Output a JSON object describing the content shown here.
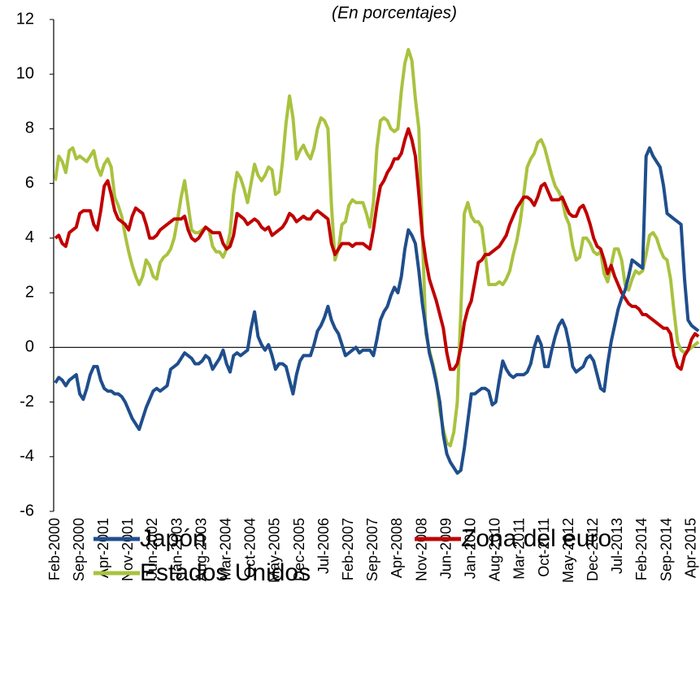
{
  "chart_data": {
    "type": "line",
    "subtitle": "(En porcentajes)",
    "categories": [
      "Feb-2000",
      null,
      null,
      null,
      null,
      null,
      null,
      "Sep-2000",
      null,
      null,
      null,
      null,
      null,
      null,
      "Apr-2001",
      null,
      null,
      null,
      null,
      null,
      null,
      "Nov-2001",
      null,
      null,
      null,
      null,
      null,
      null,
      "Jun-2002",
      null,
      null,
      null,
      null,
      null,
      null,
      "Jan-2003",
      null,
      null,
      null,
      null,
      null,
      null,
      "Aug-2003",
      null,
      null,
      null,
      null,
      null,
      null,
      "Mar-2004",
      null,
      null,
      null,
      null,
      null,
      null,
      "Oct-2004",
      null,
      null,
      null,
      null,
      null,
      null,
      "May-2005",
      null,
      null,
      null,
      null,
      null,
      null,
      "Dec-2005",
      null,
      null,
      null,
      null,
      null,
      null,
      "Jul-2006",
      null,
      null,
      null,
      null,
      null,
      null,
      "Feb-2007",
      null,
      null,
      null,
      null,
      null,
      null,
      "Sep-2007",
      null,
      null,
      null,
      null,
      null,
      null,
      "Apr-2008",
      null,
      null,
      null,
      null,
      null,
      null,
      "Nov-2008",
      null,
      null,
      null,
      null,
      null,
      null,
      "Jun-2009",
      null,
      null,
      null,
      null,
      null,
      null,
      "Jan-2010",
      null,
      null,
      null,
      null,
      null,
      null,
      "Aug-2010",
      null,
      null,
      null,
      null,
      null,
      null,
      "Mar-2011",
      null,
      null,
      null,
      null,
      null,
      null,
      "Oct-2011",
      null,
      null,
      null,
      null,
      null,
      null,
      "May-2012",
      null,
      null,
      null,
      null,
      null,
      null,
      "Dec-2012",
      null,
      null,
      null,
      null,
      null,
      null,
      "Jul-2013",
      null,
      null,
      null,
      null,
      null,
      null,
      "Feb-2014",
      null,
      null,
      null,
      null,
      null,
      null,
      "Sep-2014",
      null,
      null,
      null,
      null,
      null,
      null,
      "Apr-2015",
      null,
      null
    ],
    "series": [
      {
        "name": "Japón",
        "color": "#1f4e8c",
        "values": [
          -1.3,
          -1.1,
          -1.2,
          -1.4,
          -1.2,
          -1.1,
          -1.0,
          -1.7,
          -1.9,
          -1.5,
          -1.0,
          -0.7,
          -0.7,
          -1.2,
          -1.5,
          -1.6,
          -1.6,
          -1.7,
          -1.7,
          -1.8,
          -2.0,
          -2.3,
          -2.6,
          -2.8,
          -3.0,
          -2.6,
          -2.2,
          -1.9,
          -1.6,
          -1.5,
          -1.6,
          -1.5,
          -1.4,
          -0.8,
          -0.7,
          -0.6,
          -0.4,
          -0.2,
          -0.3,
          -0.4,
          -0.6,
          -0.6,
          -0.5,
          -0.3,
          -0.4,
          -0.8,
          -0.6,
          -0.4,
          -0.1,
          -0.6,
          -0.9,
          -0.3,
          -0.2,
          -0.3,
          -0.2,
          -0.1,
          0.7,
          1.3,
          0.4,
          0.1,
          -0.1,
          0.1,
          -0.3,
          -0.8,
          -0.6,
          -0.6,
          -0.7,
          -1.2,
          -1.7,
          -1.0,
          -0.5,
          -0.3,
          -0.3,
          -0.3,
          0.1,
          0.6,
          0.8,
          1.1,
          1.5,
          1.0,
          0.7,
          0.5,
          0.1,
          -0.3,
          -0.2,
          -0.1,
          0.0,
          -0.2,
          -0.1,
          -0.1,
          -0.1,
          -0.3,
          0.3,
          1.0,
          1.3,
          1.5,
          1.9,
          2.2,
          2.0,
          2.6,
          3.6,
          4.3,
          4.1,
          3.8,
          2.8,
          1.6,
          0.7,
          -0.2,
          -0.7,
          -1.3,
          -2.0,
          -3.2,
          -3.9,
          -4.2,
          -4.4,
          -4.6,
          -4.5,
          -3.7,
          -2.7,
          -1.7,
          -1.7,
          -1.6,
          -1.5,
          -1.5,
          -1.6,
          -2.1,
          -2.0,
          -1.2,
          -0.5,
          -0.8,
          -1.0,
          -1.1,
          -1.0,
          -1.0,
          -1.0,
          -0.9,
          -0.6,
          0.0,
          0.4,
          0.1,
          -0.7,
          -0.7,
          -0.1,
          0.4,
          0.8,
          1.0,
          0.7,
          0.1,
          -0.7,
          -0.9,
          -0.8,
          -0.7,
          -0.4,
          -0.3,
          -0.5,
          -1.0,
          -1.5,
          -1.6,
          -0.6,
          0.2,
          0.8,
          1.4,
          1.8,
          2.1,
          2.6,
          3.2,
          3.1,
          3.0,
          2.9,
          7.0,
          7.3,
          7.0,
          6.8,
          6.6,
          5.9,
          4.9,
          4.8,
          4.7,
          4.6,
          4.5,
          2.5,
          1.0,
          0.8,
          0.7,
          0.6
        ]
      },
      {
        "name": "Zona del euro",
        "color": "#c00000",
        "values": [
          4.0,
          4.1,
          3.8,
          3.7,
          4.2,
          4.3,
          4.4,
          4.9,
          5.0,
          5.0,
          5.0,
          4.5,
          4.3,
          5.0,
          5.9,
          6.1,
          5.6,
          5.0,
          4.7,
          4.6,
          4.5,
          4.3,
          4.8,
          5.1,
          5.0,
          4.9,
          4.5,
          4.0,
          4.0,
          4.1,
          4.3,
          4.4,
          4.5,
          4.6,
          4.7,
          4.7,
          4.7,
          4.8,
          4.3,
          4.0,
          3.9,
          4.0,
          4.2,
          4.4,
          4.3,
          4.2,
          4.2,
          4.2,
          3.8,
          3.6,
          3.7,
          4.1,
          4.9,
          4.8,
          4.7,
          4.5,
          4.6,
          4.7,
          4.6,
          4.4,
          4.3,
          4.4,
          4.1,
          4.2,
          4.3,
          4.4,
          4.6,
          4.9,
          4.8,
          4.6,
          4.7,
          4.8,
          4.7,
          4.7,
          4.9,
          5.0,
          4.9,
          4.8,
          4.7,
          3.8,
          3.4,
          3.6,
          3.8,
          3.8,
          3.8,
          3.7,
          3.8,
          3.8,
          3.8,
          3.7,
          3.6,
          4.3,
          5.2,
          5.9,
          6.1,
          6.4,
          6.6,
          6.9,
          6.9,
          7.1,
          7.6,
          8.0,
          7.6,
          7.0,
          5.6,
          4.1,
          3.2,
          2.5,
          2.1,
          1.7,
          1.2,
          0.7,
          -0.2,
          -0.8,
          -0.8,
          -0.6,
          0.0,
          0.9,
          1.4,
          1.7,
          2.4,
          3.1,
          3.2,
          3.4,
          3.4,
          3.5,
          3.6,
          3.7,
          3.9,
          4.1,
          4.5,
          4.8,
          5.1,
          5.3,
          5.5,
          5.5,
          5.4,
          5.2,
          5.5,
          5.9,
          6.0,
          5.7,
          5.4,
          5.4,
          5.4,
          5.5,
          5.2,
          4.9,
          4.8,
          4.8,
          5.1,
          5.2,
          4.9,
          4.5,
          4.0,
          3.7,
          3.6,
          3.2,
          2.7,
          3.0,
          2.6,
          2.3,
          2.0,
          1.8,
          1.6,
          1.5,
          1.5,
          1.4,
          1.2,
          1.2,
          1.1,
          1.0,
          0.9,
          0.8,
          0.7,
          0.7,
          0.5,
          -0.3,
          -0.7,
          -0.8,
          -0.3,
          -0.1,
          0.3,
          0.5,
          0.4
        ]
      },
      {
        "name": "Estados Unidos",
        "color": "#a9c23f",
        "values": [
          6.1,
          7.0,
          6.8,
          6.4,
          7.2,
          7.3,
          6.9,
          7.0,
          6.9,
          6.8,
          7.0,
          7.2,
          6.6,
          6.3,
          6.7,
          6.9,
          6.6,
          5.5,
          5.2,
          4.8,
          4.1,
          3.5,
          3.0,
          2.6,
          2.3,
          2.6,
          3.2,
          3.0,
          2.6,
          2.5,
          3.1,
          3.3,
          3.4,
          3.6,
          4.0,
          4.7,
          5.5,
          6.1,
          5.2,
          4.3,
          4.2,
          4.2,
          4.3,
          4.4,
          4.3,
          3.7,
          3.5,
          3.5,
          3.3,
          3.6,
          4.2,
          5.6,
          6.4,
          6.2,
          5.8,
          5.3,
          6.0,
          6.7,
          6.3,
          6.1,
          6.3,
          6.6,
          6.5,
          5.6,
          5.7,
          6.8,
          8.2,
          9.2,
          8.4,
          6.9,
          7.2,
          7.4,
          7.1,
          6.9,
          7.3,
          8.0,
          8.4,
          8.3,
          8.0,
          5.2,
          3.2,
          3.6,
          4.5,
          4.6,
          5.2,
          5.4,
          5.3,
          5.3,
          5.3,
          4.9,
          4.4,
          5.3,
          7.3,
          8.3,
          8.4,
          8.3,
          8.0,
          7.9,
          8.0,
          9.4,
          10.4,
          10.9,
          10.5,
          9.1,
          8.0,
          4.2,
          0.5,
          -0.1,
          -0.6,
          -1.2,
          -2.3,
          -3.0,
          -3.5,
          -3.6,
          -3.1,
          -2.0,
          1.3,
          4.9,
          5.3,
          4.8,
          4.6,
          4.6,
          4.4,
          3.4,
          2.3,
          2.3,
          2.3,
          2.4,
          2.3,
          2.5,
          2.8,
          3.4,
          3.9,
          4.6,
          5.6,
          6.6,
          6.9,
          7.1,
          7.5,
          7.6,
          7.3,
          6.8,
          6.3,
          5.9,
          5.7,
          5.4,
          4.8,
          4.5,
          3.7,
          3.2,
          3.3,
          4.0,
          4.0,
          3.8,
          3.5,
          3.4,
          3.5,
          2.7,
          2.4,
          3.0,
          3.6,
          3.6,
          3.2,
          2.3,
          2.1,
          2.5,
          2.8,
          2.7,
          2.8,
          3.4,
          4.1,
          4.2,
          4.0,
          3.6,
          3.3,
          3.2,
          2.5,
          1.3,
          0.2,
          -0.1,
          -0.2,
          -0.1,
          0.0,
          0.1,
          0.2
        ]
      }
    ],
    "ylim": [
      -6,
      12
    ],
    "yticks": [
      -6,
      -4,
      -2,
      0,
      2,
      4,
      6,
      8,
      10,
      12
    ],
    "grid": false,
    "legend": "bottom"
  }
}
